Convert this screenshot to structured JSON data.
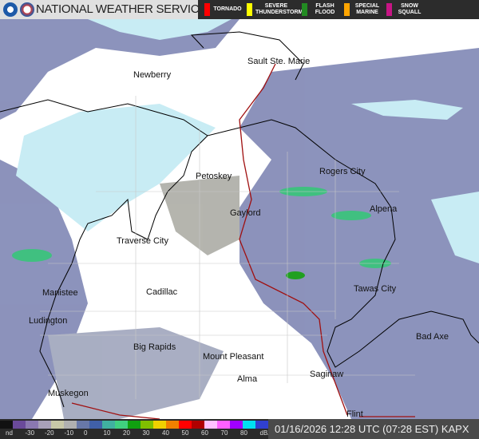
{
  "header": {
    "title": "NATIONAL WEATHER SERVICE"
  },
  "warnings": [
    {
      "label": "TORNADO",
      "color": "#ff0000"
    },
    {
      "label": "SEVERE THUNDERSTORM",
      "color": "#ffff00"
    },
    {
      "label": "FLASH FLOOD",
      "color": "#228b22"
    },
    {
      "label": "SPECIAL MARINE",
      "color": "#ffa500"
    },
    {
      "label": "SNOW SQUALL",
      "color": "#c71585"
    }
  ],
  "cities": [
    "Newberry",
    "Sault Ste. Marie",
    "Petoskey",
    "Rogers City",
    "Gaylord",
    "Alpena",
    "Traverse City",
    "Manistee",
    "Cadillac",
    "Tawas City",
    "Ludington",
    "Big Rapids",
    "Mount Pleasant",
    "Bad Axe",
    "Alma",
    "Saginaw",
    "Muskegon",
    "Flint"
  ],
  "legend": {
    "labels": [
      "nd",
      "-30",
      "-20",
      "-10",
      "0",
      "10",
      "20",
      "30",
      "40",
      "50",
      "60",
      "70",
      "80",
      "dBZ"
    ],
    "colors": [
      "#111111",
      "#6a4a9a",
      "#8a78b0",
      "#a8a0b8",
      "#c8c8a8",
      "#b0b0b0",
      "#6878a8",
      "#4060a8",
      "#40b0a0",
      "#40d080",
      "#10a010",
      "#80c000",
      "#f0d000",
      "#f08000",
      "#ff0000",
      "#b00000",
      "#ffc0ff",
      "#ff60ff",
      "#a000ff",
      "#00e0f0",
      "#3040d0"
    ]
  },
  "timestamp": "01/16/2026 12:28 UTC (07:28 EST)  KAPX"
}
